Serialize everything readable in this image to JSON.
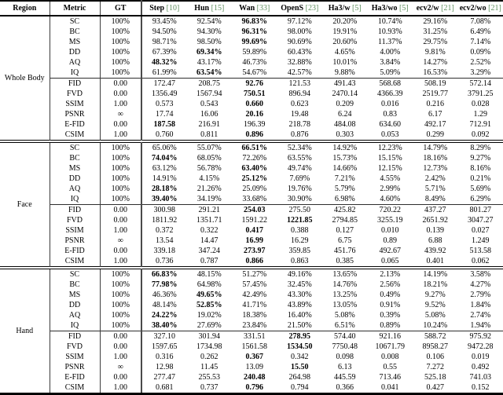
{
  "colors": {
    "citation": "#5e8f5e",
    "text": "#000000",
    "rule": "#000000"
  },
  "table": {
    "header": {
      "region": "Region",
      "metric": "Metric",
      "gt": "GT",
      "methods": [
        {
          "name": "Step",
          "cite": "[10]"
        },
        {
          "name": "Hun",
          "cite": "[15]"
        },
        {
          "name": "Wan",
          "cite": "[33]"
        },
        {
          "name": "OpenS",
          "cite": "[23]"
        },
        {
          "name": "Ha3/w",
          "cite": "[5]"
        },
        {
          "name": "Ha3/wo",
          "cite": "[5]"
        },
        {
          "name": "ecv2/w",
          "cite": "[21]"
        },
        {
          "name": "ecv2/wo",
          "cite": "[21]"
        }
      ]
    },
    "sections": [
      {
        "region": "Whole Body",
        "blocks": [
          [
            {
              "metric": "SC",
              "gt": "100%",
              "values": [
                "93.45%",
                "92.54%",
                "96.83%",
                "97.12%",
                "20.20%",
                "10.74%",
                "29.16%",
                "7.08%"
              ],
              "bold": 2
            },
            {
              "metric": "BC",
              "gt": "100%",
              "values": [
                "94.50%",
                "94.30%",
                "96.31%",
                "98.00%",
                "19.91%",
                "10.93%",
                "31.25%",
                "6.49%"
              ],
              "bold": 2
            },
            {
              "metric": "MS",
              "gt": "100%",
              "values": [
                "98.71%",
                "98.50%",
                "99.69%",
                "90.69%",
                "20.60%",
                "11.37%",
                "29.75%",
                "7.14%"
              ],
              "bold": 2
            },
            {
              "metric": "DD",
              "gt": "100%",
              "values": [
                "67.39%",
                "69.34%",
                "59.89%",
                "60.43%",
                "4.65%",
                "4.00%",
                "9.81%",
                "0.09%"
              ],
              "bold": 1
            },
            {
              "metric": "AQ",
              "gt": "100%",
              "values": [
                "48.32%",
                "43.17%",
                "46.73%",
                "32.88%",
                "10.01%",
                "3.84%",
                "14.27%",
                "2.52%"
              ],
              "bold": 0
            },
            {
              "metric": "IQ",
              "gt": "100%",
              "values": [
                "61.99%",
                "63.54%",
                "54.67%",
                "42.57%",
                "9.88%",
                "5.09%",
                "16.53%",
                "3.29%"
              ],
              "bold": 1
            }
          ],
          [
            {
              "metric": "FID",
              "gt": "0.00",
              "values": [
                "172.47",
                "208.75",
                "92.76",
                "121.53",
                "491.43",
                "568.68",
                "508.19",
                "572.14"
              ],
              "bold": 2
            },
            {
              "metric": "FVD",
              "gt": "0.00",
              "values": [
                "1356.49",
                "1567.94",
                "750.51",
                "896.94",
                "2470.14",
                "4366.39",
                "2519.77",
                "3791.25"
              ],
              "bold": 2
            },
            {
              "metric": "SSIM",
              "gt": "1.00",
              "values": [
                "0.573",
                "0.543",
                "0.660",
                "0.623",
                "0.209",
                "0.016",
                "0.216",
                "0.028"
              ],
              "bold": 2
            },
            {
              "metric": "PSNR",
              "gt": "∞",
              "values": [
                "17.74",
                "16.06",
                "20.16",
                "19.48",
                "6.24",
                "0.83",
                "6.17",
                "1.29"
              ],
              "bold": 2
            },
            {
              "metric": "E-FID",
              "gt": "0.00",
              "values": [
                "187.58",
                "216.91",
                "196.39",
                "218.78",
                "484.08",
                "634.60",
                "492.17",
                "712.91"
              ],
              "bold": 0
            },
            {
              "metric": "CSIM",
              "gt": "1.00",
              "values": [
                "0.760",
                "0.811",
                "0.896",
                "0.876",
                "0.303",
                "0.053",
                "0.299",
                "0.092"
              ],
              "bold": 2
            }
          ]
        ]
      },
      {
        "region": "Face",
        "blocks": [
          [
            {
              "metric": "SC",
              "gt": "100%",
              "values": [
                "65.06%",
                "55.07%",
                "66.51%",
                "52.34%",
                "14.92%",
                "12.23%",
                "14.79%",
                "8.29%"
              ],
              "bold": 2
            },
            {
              "metric": "BC",
              "gt": "100%",
              "values": [
                "74.04%",
                "68.05%",
                "72.26%",
                "63.55%",
                "15.73%",
                "15.15%",
                "18.16%",
                "9.27%"
              ],
              "bold": 0
            },
            {
              "metric": "MS",
              "gt": "100%",
              "values": [
                "63.12%",
                "56.78%",
                "63.40%",
                "49.74%",
                "14.66%",
                "12.15%",
                "12.73%",
                "8.16%"
              ],
              "bold": 2
            },
            {
              "metric": "DD",
              "gt": "100%",
              "values": [
                "14.91%",
                "4.15%",
                "25.12%",
                "7.69%",
                "7.21%",
                "4.55%",
                "2.42%",
                "0.21%"
              ],
              "bold": 2
            },
            {
              "metric": "AQ",
              "gt": "100%",
              "values": [
                "28.18%",
                "21.26%",
                "25.09%",
                "19.76%",
                "5.79%",
                "2.99%",
                "5.71%",
                "5.69%"
              ],
              "bold": 0
            },
            {
              "metric": "IQ",
              "gt": "100%",
              "values": [
                "39.40%",
                "34.19%",
                "33.68%",
                "30.90%",
                "6.98%",
                "4.60%",
                "8.49%",
                "6.29%"
              ],
              "bold": 0
            }
          ],
          [
            {
              "metric": "FID",
              "gt": "0.00",
              "values": [
                "300.98",
                "291.21",
                "254.03",
                "275.50",
                "425.82",
                "720.22",
                "437.27",
                "801.27"
              ],
              "bold": 2
            },
            {
              "metric": "FVD",
              "gt": "0.00",
              "values": [
                "1811.92",
                "1351.71",
                "1591.22",
                "1221.85",
                "2794.85",
                "3255.19",
                "2651.92",
                "3047.27"
              ],
              "bold": 3
            },
            {
              "metric": "SSIM",
              "gt": "1.00",
              "values": [
                "0.372",
                "0.322",
                "0.417",
                "0.388",
                "0.127",
                "0.010",
                "0.139",
                "0.027"
              ],
              "bold": 2
            },
            {
              "metric": "PSNR",
              "gt": "∞",
              "values": [
                "13.54",
                "14.47",
                "16.99",
                "16.29",
                "6.75",
                "0.89",
                "6.88",
                "1.249"
              ],
              "bold": 2
            },
            {
              "metric": "E-FID",
              "gt": "0.00",
              "values": [
                "339.18",
                "347.24",
                "273.97",
                "359.85",
                "451.76",
                "492.67",
                "439.92",
                "513.58"
              ],
              "bold": 2
            },
            {
              "metric": "CSIM",
              "gt": "1.00",
              "values": [
                "0.736",
                "0.787",
                "0.866",
                "0.863",
                "0.385",
                "0.065",
                "0.401",
                "0.062"
              ],
              "bold": 2
            }
          ]
        ]
      },
      {
        "region": "Hand",
        "blocks": [
          [
            {
              "metric": "SC",
              "gt": "100%",
              "values": [
                "66.83%",
                "48.15%",
                "51.27%",
                "49.16%",
                "13.65%",
                "2.13%",
                "14.19%",
                "3.58%"
              ],
              "bold": 0
            },
            {
              "metric": "BC",
              "gt": "100%",
              "values": [
                "77.98%",
                "64.98%",
                "57.45%",
                "32.45%",
                "14.76%",
                "2.56%",
                "18.21%",
                "4.27%"
              ],
              "bold": 0
            },
            {
              "metric": "MS",
              "gt": "100%",
              "values": [
                "46.36%",
                "49.65%",
                "42.49%",
                "43.30%",
                "13.25%",
                "0.49%",
                "9.27%",
                "2.79%"
              ],
              "bold": 1
            },
            {
              "metric": "DD",
              "gt": "100%",
              "values": [
                "48.14%",
                "52.85%",
                "41.71%",
                "43.89%",
                "13.05%",
                "0.91%",
                "9.52%",
                "1.84%"
              ],
              "bold": 1
            },
            {
              "metric": "AQ",
              "gt": "100%",
              "values": [
                "24.22%",
                "19.02%",
                "18.38%",
                "16.40%",
                "5.08%",
                "0.39%",
                "5.08%",
                "2.74%"
              ],
              "bold": 0
            },
            {
              "metric": "IQ",
              "gt": "100%",
              "values": [
                "38.40%",
                "27.69%",
                "23.84%",
                "21.50%",
                "6.51%",
                "0.89%",
                "10.24%",
                "1.94%"
              ],
              "bold": 0
            }
          ],
          [
            {
              "metric": "FID",
              "gt": "0.00",
              "values": [
                "327.10",
                "301.94",
                "331.51",
                "278.95",
                "574.40",
                "921.16",
                "588.72",
                "975.92"
              ],
              "bold": 3
            },
            {
              "metric": "FVD",
              "gt": "0.00",
              "values": [
                "1597.65",
                "1734.98",
                "1561.58",
                "1534.50",
                "7750.48",
                "10671.79",
                "8958.27",
                "9472.28"
              ],
              "bold": 3
            },
            {
              "metric": "SSIM",
              "gt": "1.00",
              "values": [
                "0.316",
                "0.262",
                "0.367",
                "0.342",
                "0.098",
                "0.008",
                "0.106",
                "0.019"
              ],
              "bold": 2
            },
            {
              "metric": "PSNR",
              "gt": "∞",
              "values": [
                "12.98",
                "11.45",
                "13.09",
                "15.50",
                "6.13",
                "0.55",
                "7.272",
                "0.492"
              ],
              "bold": 3
            },
            {
              "metric": "E-FID",
              "gt": "0.00",
              "values": [
                "277.47",
                "255.53",
                "240.48",
                "264.98",
                "445.59",
                "713.46",
                "525.18",
                "741.03"
              ],
              "bold": 2
            },
            {
              "metric": "CSIM",
              "gt": "1.00",
              "values": [
                "0.681",
                "0.737",
                "0.796",
                "0.794",
                "0.366",
                "0.041",
                "0.427",
                "0.152"
              ],
              "bold": 2
            }
          ]
        ]
      }
    ]
  }
}
